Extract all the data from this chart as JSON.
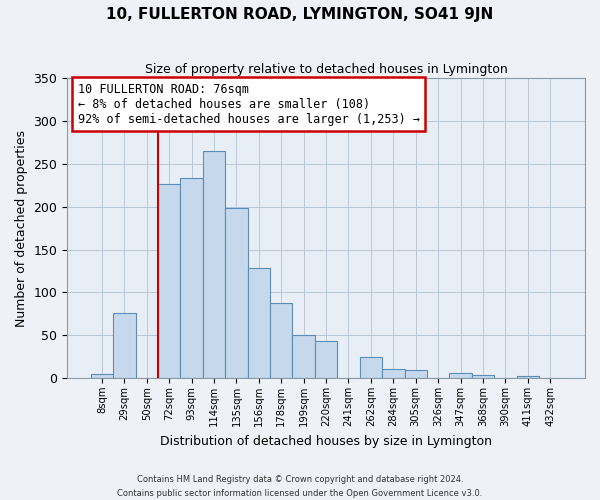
{
  "title": "10, FULLERTON ROAD, LYMINGTON, SO41 9JN",
  "subtitle": "Size of property relative to detached houses in Lymington",
  "xlabel": "Distribution of detached houses by size in Lymington",
  "ylabel": "Number of detached properties",
  "bar_labels": [
    "8sqm",
    "29sqm",
    "50sqm",
    "72sqm",
    "93sqm",
    "114sqm",
    "135sqm",
    "156sqm",
    "178sqm",
    "199sqm",
    "220sqm",
    "241sqm",
    "262sqm",
    "284sqm",
    "305sqm",
    "326sqm",
    "347sqm",
    "368sqm",
    "390sqm",
    "411sqm",
    "432sqm"
  ],
  "bar_values": [
    5,
    76,
    0,
    226,
    234,
    265,
    199,
    128,
    88,
    50,
    43,
    0,
    25,
    11,
    10,
    0,
    6,
    4,
    0,
    2,
    0
  ],
  "bar_color": "#c5d8ec",
  "bar_edge_color": "#5b8db8",
  "vline_index": 3,
  "vline_color": "#cc0000",
  "annotation_text_line1": "10 FULLERTON ROAD: 76sqm",
  "annotation_text_line2": "← 8% of detached houses are smaller (108)",
  "annotation_text_line3": "92% of semi-detached houses are larger (1,253) →",
  "annotation_box_color": "#ffffff",
  "annotation_box_edge": "#cc0000",
  "ylim": [
    0,
    350
  ],
  "yticks": [
    0,
    50,
    100,
    150,
    200,
    250,
    300,
    350
  ],
  "footer_line1": "Contains HM Land Registry data © Crown copyright and database right 2024.",
  "footer_line2": "Contains public sector information licensed under the Open Government Licence v3.0.",
  "background_color": "#eef2f7",
  "plot_bg_color": "#e8eef5",
  "grid_color": "#b8c8d8"
}
